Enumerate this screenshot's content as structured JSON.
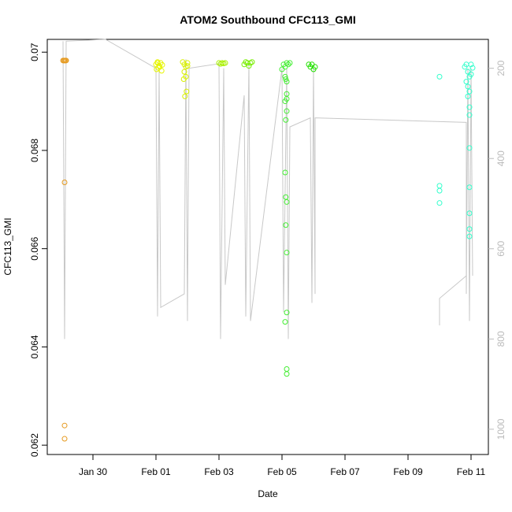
{
  "chart_data": {
    "type": "scatter",
    "title": "ATOM2 Southbound CFC113_GMI",
    "x_label": "Date",
    "y_label": "CFC113_GMI",
    "xlim": [
      28.55,
      42.55
    ],
    "xticks": [
      {
        "value": 30,
        "label": "Jan 30"
      },
      {
        "value": 32,
        "label": "Feb 01"
      },
      {
        "value": 34,
        "label": "Feb 03"
      },
      {
        "value": 36,
        "label": "Feb 05"
      },
      {
        "value": 38,
        "label": "Feb 07"
      },
      {
        "value": 40,
        "label": "Feb 09"
      },
      {
        "value": 42,
        "label": "Feb 11"
      }
    ],
    "ylim": [
      0.06181,
      0.07026
    ],
    "yticks": [
      0.062,
      0.064,
      0.066,
      0.068,
      0.07
    ],
    "y2lim": [
      1056,
      136
    ],
    "y2ticks": [
      200,
      400,
      600,
      800,
      1000
    ],
    "series": [
      {
        "color": "#e69a1f",
        "x": [
          29.05,
          29.08,
          29.1,
          29.13,
          29.15,
          29.1,
          29.1,
          29.1
        ],
        "values": [
          0.06983,
          0.06983,
          0.06983,
          0.06983,
          0.06983,
          0.06735,
          0.0624,
          0.06213
        ]
      },
      {
        "color": "#e6f500",
        "x": [
          32.0,
          32.05,
          32.1,
          32.15,
          32.2,
          32.02,
          32.08,
          32.12,
          32.18,
          32.05
        ],
        "values": [
          0.06975,
          0.06978,
          0.06972,
          0.06978,
          0.06974,
          0.06965,
          0.06968,
          0.0697,
          0.06962,
          0.0698
        ]
      },
      {
        "color": "#d8f000",
        "x": [
          32.85,
          32.9,
          32.95,
          33.0,
          32.9,
          32.95,
          32.88,
          32.97,
          32.92,
          33.0
        ],
        "values": [
          0.0698,
          0.06975,
          0.0697,
          0.06978,
          0.0696,
          0.0695,
          0.06945,
          0.0692,
          0.0691,
          0.06972
        ]
      },
      {
        "color": "#a8f000",
        "x": [
          34.0,
          34.05,
          34.1,
          34.15,
          34.2
        ],
        "values": [
          0.06978,
          0.06976,
          0.06978,
          0.06977,
          0.06978
        ]
      },
      {
        "color": "#77ee00",
        "x": [
          34.8,
          34.85,
          34.9,
          34.95,
          35.0,
          35.05
        ],
        "values": [
          0.06975,
          0.0698,
          0.06978,
          0.06972,
          0.06978,
          0.0698
        ]
      },
      {
        "color": "#44ee33",
        "x": [
          36.0,
          36.05,
          36.1,
          36.15,
          36.2,
          36.25,
          36.1,
          36.12,
          36.1,
          36.15,
          36.15,
          36.12,
          36.15,
          36.1,
          36.12,
          36.15,
          36.12,
          36.15,
          36.15,
          36.1,
          36.15,
          36.15,
          36.15
        ],
        "values": [
          0.06965,
          0.06975,
          0.0697,
          0.06978,
          0.06975,
          0.06978,
          0.0695,
          0.06945,
          0.069,
          0.06905,
          0.0688,
          0.06862,
          0.06915,
          0.06755,
          0.06705,
          0.06695,
          0.06648,
          0.06592,
          0.0647,
          0.06451,
          0.06355,
          0.06345,
          0.0694
        ]
      },
      {
        "color": "#22e000",
        "x": [
          36.85,
          36.9,
          36.95,
          37.0,
          37.05
        ],
        "values": [
          0.06975,
          0.0697,
          0.06975,
          0.06965,
          0.0697
        ]
      },
      {
        "color": "#33ffcc",
        "x": [
          41.0,
          41.0,
          41.0,
          41.0,
          41.8,
          41.85,
          41.9,
          41.95,
          42.0,
          42.05,
          41.85,
          41.9,
          41.95,
          41.9,
          41.95,
          41.95,
          41.95,
          41.95,
          41.95,
          41.95,
          41.95,
          42.0
        ],
        "values": [
          0.0695,
          0.06728,
          0.06718,
          0.06693,
          0.0697,
          0.06975,
          0.0696,
          0.0695,
          0.06975,
          0.06968,
          0.0694,
          0.0693,
          0.0692,
          0.0691,
          0.06888,
          0.06872,
          0.06805,
          0.06725,
          0.06672,
          0.0664,
          0.06625,
          0.06955
        ]
      },
      {
        "color": "#c8c8c8",
        "axis": "y2",
        "line": true,
        "x": [
          29.05,
          29.1,
          29.15,
          30.4,
          32.0,
          32.05,
          32.1,
          32.15,
          32.9,
          32.95,
          33.0,
          33.05,
          34.0,
          34.05,
          34.15,
          34.2,
          34.8,
          34.85,
          34.95,
          35.0,
          36.0,
          36.05,
          36.15,
          36.2,
          36.25,
          36.9,
          36.95,
          37.0,
          37.05,
          37.05,
          41.85,
          41.85,
          41.9,
          41.95,
          42.0,
          42.05
        ],
        "values": [
          140,
          800,
          140,
          136,
          200,
          750,
          200,
          730,
          700,
          180,
          760,
          200,
          190,
          800,
          200,
          680,
          260,
          750,
          190,
          760,
          200,
          740,
          200,
          800,
          330,
          310,
          720,
          200,
          700,
          310,
          320,
          700,
          200,
          760,
          200,
          660
        ]
      },
      {
        "color": "#c8c8c8",
        "axis": "y2",
        "line": true,
        "x": [
          41.0,
          41.0,
          41.85
        ],
        "values": [
          770,
          710,
          660
        ]
      }
    ]
  }
}
